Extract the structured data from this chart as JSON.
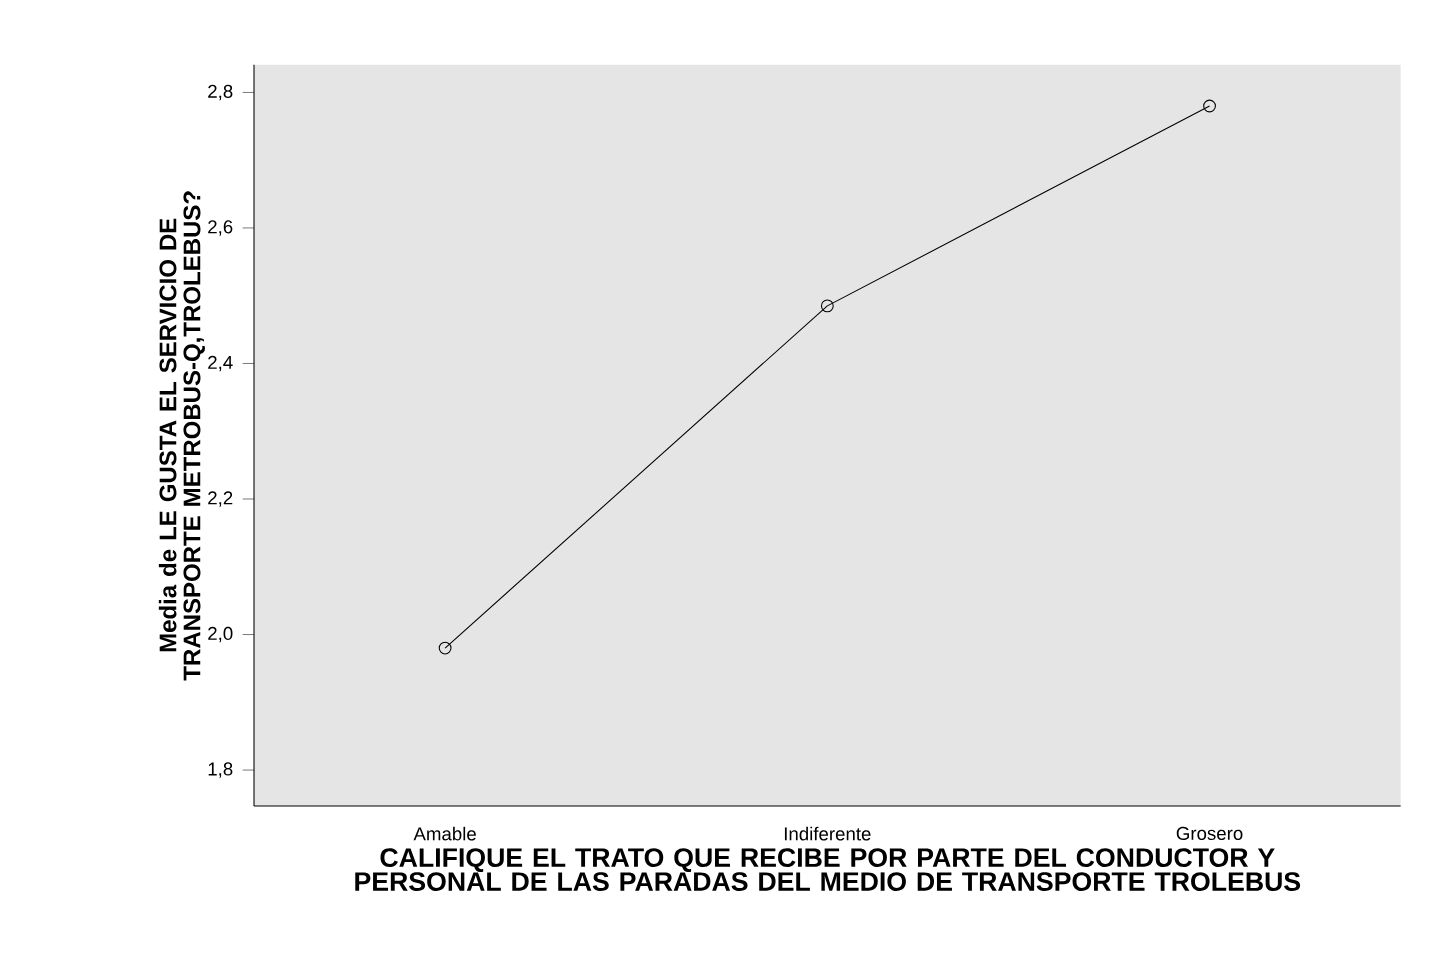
{
  "chart_data": {
    "type": "line",
    "xlabel": "CALIFIQUE EL TRATO QUE RECIBE POR PARTE DEL CONDUCTOR Y PERSONAL DE LAS PARADAS DEL MEDIO DE TRANSPORTE TROLEBUS",
    "ylabel": "Media de LE GUSTA EL SERVICIO DE TRANSPORTE METROBUS-Q,TROLEBUS?",
    "categories": [
      "Amable",
      "Indiferente",
      "Grosero"
    ],
    "series": [
      {
        "color": "#000000",
        "values": [
          1.98,
          2.485,
          2.78
        ]
      }
    ],
    "marker": "circle",
    "line_style": "solid",
    "grid": false,
    "ylim": [
      1.747,
      2.841
    ],
    "yticks": [
      {
        "value": 1.8,
        "label": "1,8"
      },
      {
        "value": 2.0,
        "label": "2,0"
      },
      {
        "value": 2.2,
        "label": "2,2"
      },
      {
        "value": 2.4,
        "label": "2,4"
      },
      {
        "value": 2.6,
        "label": "2,6"
      },
      {
        "value": 2.8,
        "label": "2,8"
      }
    ]
  }
}
